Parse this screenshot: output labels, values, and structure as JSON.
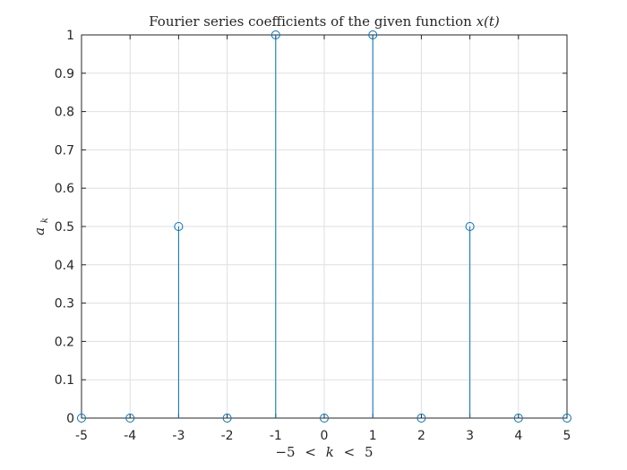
{
  "chart_data": {
    "type": "stem",
    "title": "Fourier series coefficients of the given function x(t)",
    "title_parts": {
      "text": "Fourier series coefficients of the given function ",
      "math": "x(t)"
    },
    "xlabel": "−5 < k < 5",
    "xlabel_parts": {
      "lower": "−5",
      "lt1": "<",
      "var": "k",
      "lt2": "<",
      "upper": "5"
    },
    "ylabel": "a_k",
    "ylabel_parts": {
      "base": "a",
      "sub": "k"
    },
    "xlim": [
      -5,
      5
    ],
    "ylim": [
      0,
      1
    ],
    "grid": true,
    "color": "#0072BD",
    "marker": "circle-open",
    "x": [
      -5,
      -4,
      -3,
      -2,
      -1,
      0,
      1,
      2,
      3,
      4,
      5
    ],
    "values": [
      0,
      0,
      0.5,
      0,
      1,
      0,
      1,
      0,
      0.5,
      0,
      0
    ],
    "xticks": [
      -5,
      -4,
      -3,
      -2,
      -1,
      0,
      1,
      2,
      3,
      4,
      5
    ],
    "xtick_labels": [
      "-5",
      "-4",
      "-3",
      "-2",
      "-1",
      "0",
      "1",
      "2",
      "3",
      "4",
      "5"
    ],
    "yticks": [
      0,
      0.1,
      0.2,
      0.3,
      0.4,
      0.5,
      0.6,
      0.7,
      0.8,
      0.9,
      1
    ],
    "ytick_labels": [
      "0",
      "0.1",
      "0.2",
      "0.3",
      "0.4",
      "0.5",
      "0.6",
      "0.7",
      "0.8",
      "0.9",
      "1"
    ]
  }
}
